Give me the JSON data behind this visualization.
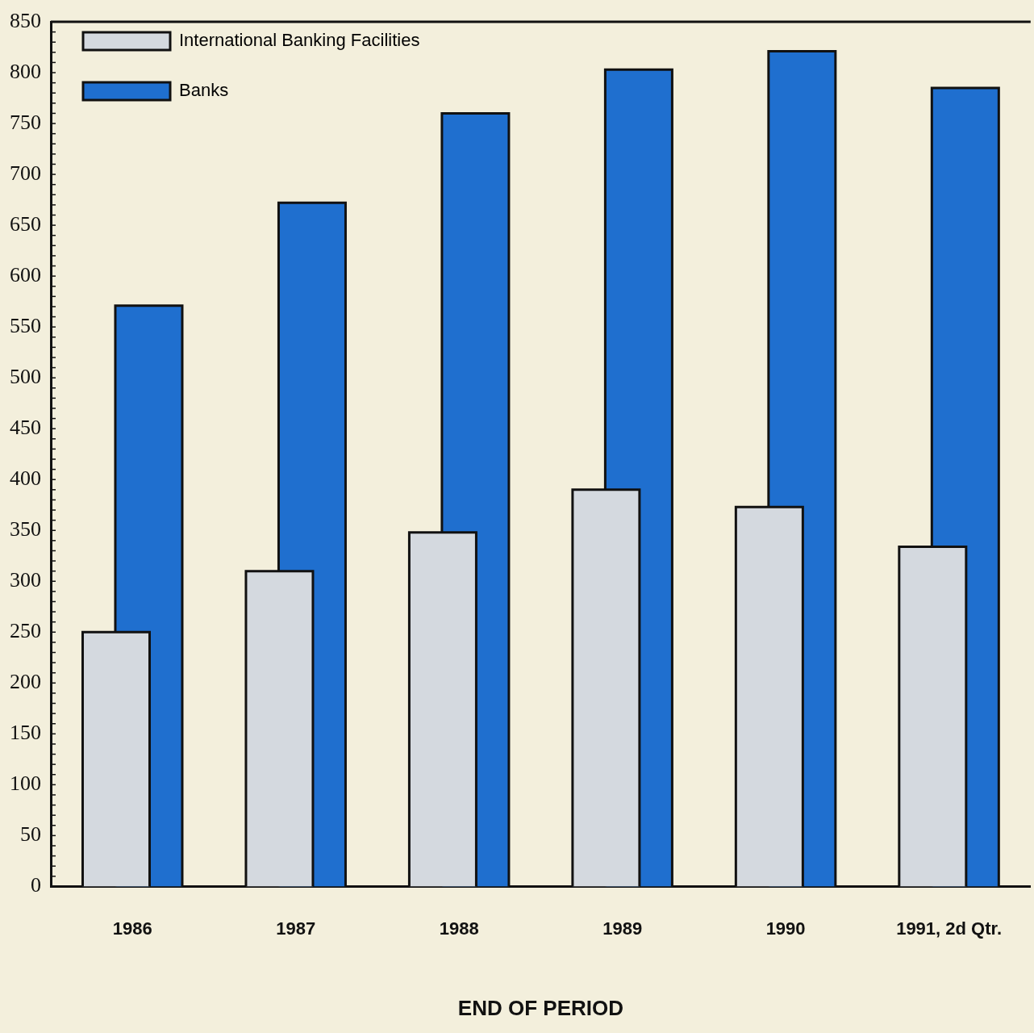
{
  "chart_data": {
    "type": "bar",
    "xlabel": "END OF PERIOD",
    "categories": [
      "1986",
      "1987",
      "1988",
      "1989",
      "1990",
      "1991, 2d Qtr."
    ],
    "series": [
      {
        "name": "International Banking Facilities",
        "color": "#d4d9df",
        "values": [
          250,
          310,
          348,
          390,
          373,
          334
        ]
      },
      {
        "name": "Banks",
        "color": "#1f6fcf",
        "values": [
          571,
          672,
          760,
          803,
          821,
          785
        ]
      }
    ],
    "ylim": [
      0,
      850
    ],
    "yticks": [
      0,
      50,
      100,
      150,
      200,
      250,
      300,
      350,
      400,
      450,
      500,
      550,
      600,
      650,
      700,
      750,
      800,
      850
    ],
    "grid": false,
    "legend": "top left"
  }
}
